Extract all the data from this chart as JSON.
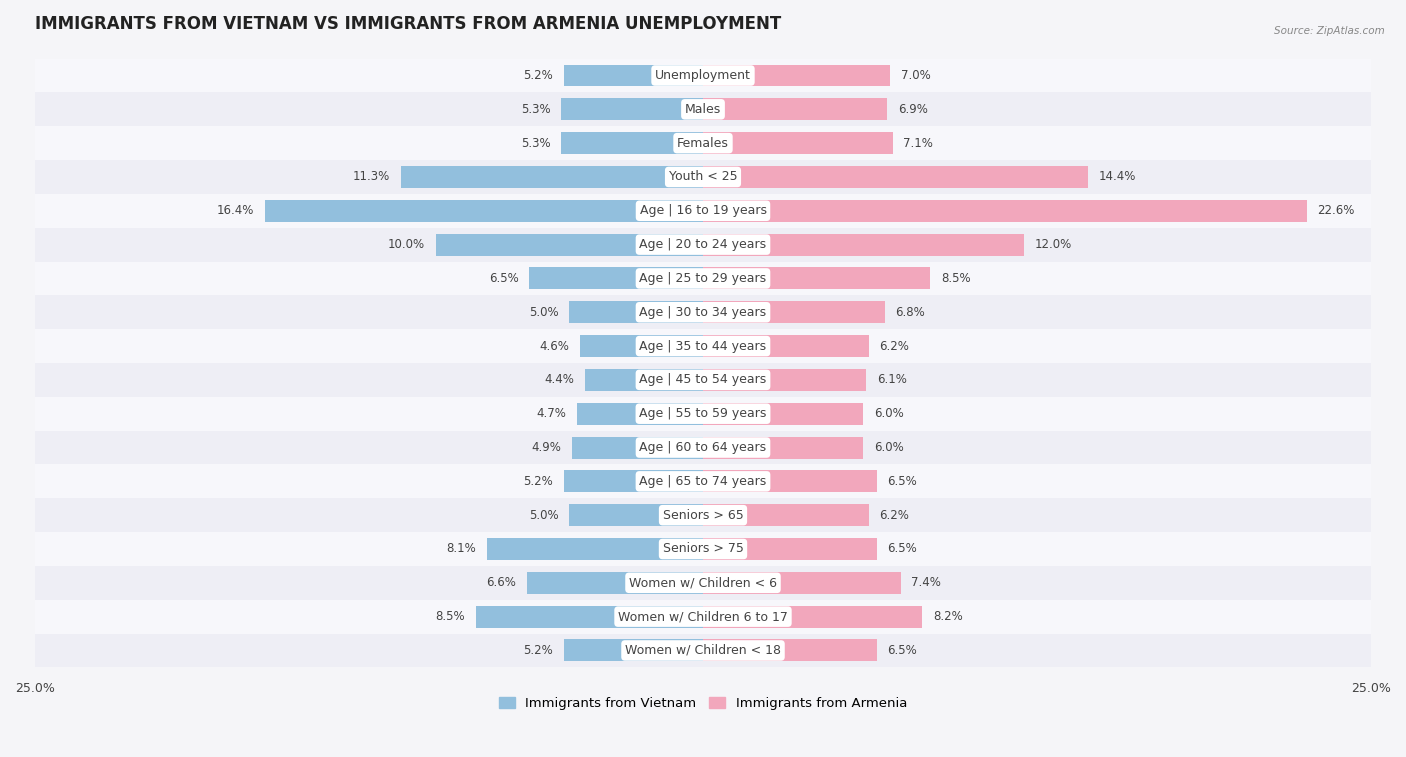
{
  "title": "IMMIGRANTS FROM VIETNAM VS IMMIGRANTS FROM ARMENIA UNEMPLOYMENT",
  "source": "Source: ZipAtlas.com",
  "categories": [
    "Unemployment",
    "Males",
    "Females",
    "Youth < 25",
    "Age | 16 to 19 years",
    "Age | 20 to 24 years",
    "Age | 25 to 29 years",
    "Age | 30 to 34 years",
    "Age | 35 to 44 years",
    "Age | 45 to 54 years",
    "Age | 55 to 59 years",
    "Age | 60 to 64 years",
    "Age | 65 to 74 years",
    "Seniors > 65",
    "Seniors > 75",
    "Women w/ Children < 6",
    "Women w/ Children 6 to 17",
    "Women w/ Children < 18"
  ],
  "vietnam_values": [
    5.2,
    5.3,
    5.3,
    11.3,
    16.4,
    10.0,
    6.5,
    5.0,
    4.6,
    4.4,
    4.7,
    4.9,
    5.2,
    5.0,
    8.1,
    6.6,
    8.5,
    5.2
  ],
  "armenia_values": [
    7.0,
    6.9,
    7.1,
    14.4,
    22.6,
    12.0,
    8.5,
    6.8,
    6.2,
    6.1,
    6.0,
    6.0,
    6.5,
    6.2,
    6.5,
    7.4,
    8.2,
    6.5
  ],
  "vietnam_color": "#92bfdd",
  "armenia_color": "#f2a7bc",
  "vietnam_label": "Immigrants from Vietnam",
  "armenia_label": "Immigrants from Armenia",
  "xlim": 25.0,
  "row_color_even": "#f7f7fb",
  "row_color_odd": "#eeeef5",
  "title_fontsize": 12,
  "label_fontsize": 9,
  "value_fontsize": 8.5,
  "bar_height": 0.65,
  "label_box_color": "#ffffff",
  "label_text_color": "#444444",
  "value_text_color": "#444444"
}
